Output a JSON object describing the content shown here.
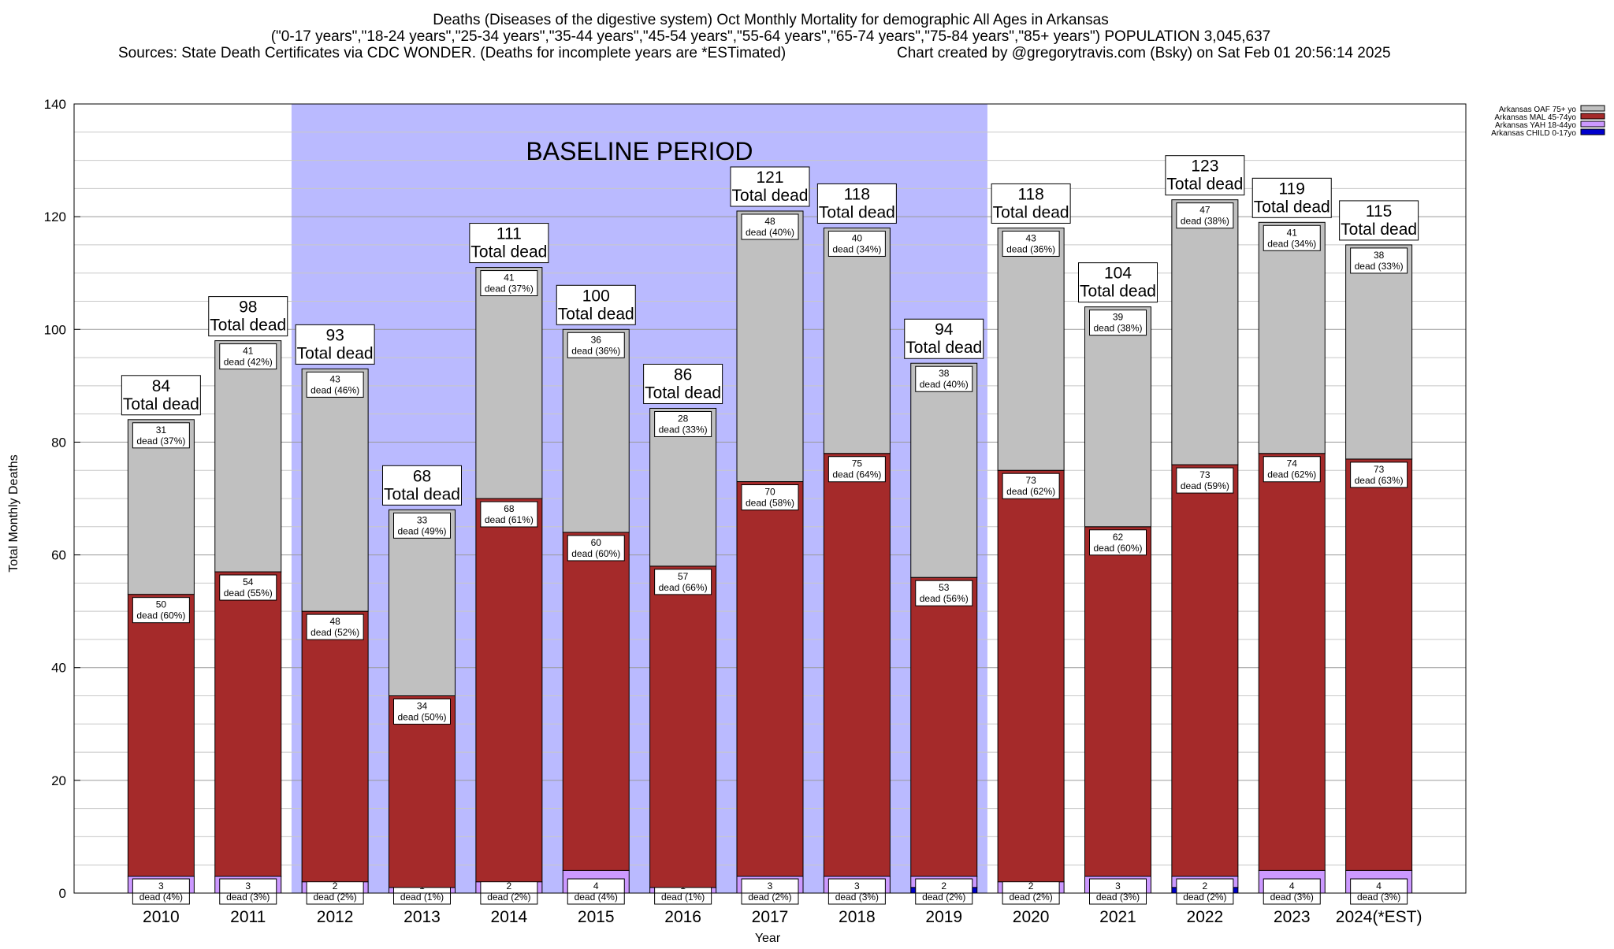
{
  "header": {
    "title_line1": "Deaths (Diseases of the digestive system) Oct Monthly Mortality for demographic All Ages in Arkansas",
    "title_line2": "(\"0-17 years\",\"18-24 years\",\"25-34 years\",\"35-44 years\",\"45-54 years\",\"55-64 years\",\"65-74 years\",\"75-84 years\",\"85+ years\") POPULATION 3,045,637",
    "sources": "Sources: State Death Certificates via CDC WONDER. (Deaths for incomplete years are *ESTimated)",
    "credit": "Chart created by @gregorytravis.com (Bsky) on Sat Feb 01 20:56:14 2025"
  },
  "chart_data": {
    "type": "bar",
    "stacked": true,
    "xlabel": "Year",
    "ylabel": "Total Monthly Deaths",
    "ylim": [
      0,
      140
    ],
    "yticks": [
      0,
      20,
      40,
      60,
      80,
      100,
      120,
      140
    ],
    "grid": true,
    "legend_position": "top-right",
    "annotation": "BASELINE PERIOD",
    "baseline_years": [
      "2012",
      "2019"
    ],
    "categories": [
      "2010",
      "2011",
      "2012",
      "2013",
      "2014",
      "2015",
      "2016",
      "2017",
      "2018",
      "2019",
      "2020",
      "2021",
      "2022",
      "2023",
      "2024(*EST)"
    ],
    "series": [
      {
        "name": "Arkansas CHILD 0-17yo",
        "color": "#0000cc",
        "values": [
          0,
          0,
          0,
          0,
          0,
          0,
          0,
          0,
          0,
          1,
          0,
          0,
          1,
          0,
          0
        ],
        "labels": [
          "",
          "",
          "",
          "",
          "",
          "",
          "",
          "",
          "",
          "",
          "",
          "",
          "",
          "",
          ""
        ]
      },
      {
        "name": "Arkansas YAH 18-44yo",
        "color": "#cc99ff",
        "values": [
          3,
          3,
          2,
          1,
          2,
          4,
          1,
          3,
          3,
          2,
          2,
          3,
          2,
          4,
          4
        ],
        "labels": [
          "3|dead (4%)",
          "3|dead (3%)",
          "2|dead (2%)",
          "1|dead (1%)",
          "2|dead (2%)",
          "4|dead (4%)",
          "1|dead (1%)",
          "3|dead (2%)",
          "3|dead (3%)",
          "2|dead (2%)",
          "2|dead (2%)",
          "3|dead (3%)",
          "2|dead (2%)",
          "4|dead (3%)",
          "4|dead (3%)"
        ]
      },
      {
        "name": "Arkansas MAL 45-74yo",
        "color": "#a52a2a",
        "values": [
          50,
          54,
          48,
          34,
          68,
          60,
          57,
          70,
          75,
          53,
          73,
          62,
          73,
          74,
          73
        ],
        "labels": [
          "50|dead (60%)",
          "54|dead (55%)",
          "48|dead (52%)",
          "34|dead (50%)",
          "68|dead (61%)",
          "60|dead (60%)",
          "57|dead (66%)",
          "70|dead (58%)",
          "75|dead (64%)",
          "53|dead (56%)",
          "73|dead (62%)",
          "62|dead (60%)",
          "73|dead (59%)",
          "74|dead (62%)",
          "73|dead (63%)"
        ]
      },
      {
        "name": "Arkansas OAF 75+ yo",
        "color": "#c0c0c0",
        "values": [
          31,
          41,
          43,
          33,
          41,
          36,
          28,
          48,
          40,
          38,
          43,
          39,
          47,
          41,
          38
        ],
        "labels": [
          "31|dead (37%)",
          "41|dead (42%)",
          "43|dead (46%)",
          "33|dead (49%)",
          "41|dead (37%)",
          "36|dead (36%)",
          "28|dead (33%)",
          "48|dead (40%)",
          "40|dead (34%)",
          "38|dead (40%)",
          "43|dead (36%)",
          "39|dead (38%)",
          "47|dead (38%)",
          "41|dead (34%)",
          "38|dead (33%)"
        ]
      }
    ],
    "totals": [
      84,
      98,
      93,
      68,
      111,
      100,
      86,
      121,
      118,
      94,
      118,
      104,
      123,
      119,
      115
    ],
    "total_label": "Total dead"
  }
}
